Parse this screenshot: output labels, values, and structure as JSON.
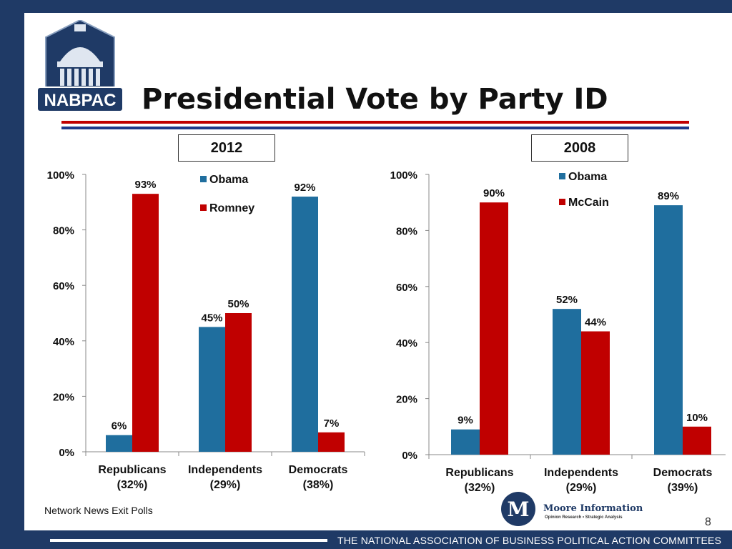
{
  "slide": {
    "title": "Presidential Vote by Party ID",
    "logo_text": "NABPAC",
    "source": "Network News Exit Polls",
    "page_number": "8",
    "footer": "THE NATIONAL ASSOCIATION OF BUSINESS POLITICAL ACTION COMMITTEES",
    "moore_logo": {
      "name": "Moore Information",
      "tagline": "Opinion Research • Strategic Analysis",
      "mark": "M"
    },
    "colors": {
      "background": "#1f3a66",
      "red": "#c00000",
      "blue": "#1f6e9e"
    }
  },
  "chart_data": [
    {
      "type": "bar",
      "year_label": "2012",
      "categories": [
        "Republicans (32%)",
        "Independents (29%)",
        "Democrats (38%)"
      ],
      "category_lines": [
        [
          "Republicans",
          "(32%)"
        ],
        [
          "Independents",
          "(29%)"
        ],
        [
          "Democrats",
          "(38%)"
        ]
      ],
      "series": [
        {
          "name": "Obama",
          "values": [
            6,
            45,
            92
          ],
          "labels": [
            "6%",
            "45%",
            "92%"
          ],
          "color": "#1f6e9e"
        },
        {
          "name": "Romney",
          "values": [
            93,
            50,
            7
          ],
          "labels": [
            "93%",
            "50%",
            "7%"
          ],
          "color": "#c00000"
        }
      ],
      "ylim": [
        0,
        100
      ],
      "yticks": [
        "0%",
        "20%",
        "40%",
        "60%",
        "80%",
        "100%"
      ],
      "legend": "top-center",
      "grid": false
    },
    {
      "type": "bar",
      "year_label": "2008",
      "categories": [
        "Republicans (32%)",
        "Independents (29%)",
        "Democrats (39%)"
      ],
      "category_lines": [
        [
          "Republicans",
          "(32%)"
        ],
        [
          "Independents",
          "(29%)"
        ],
        [
          "Democrats",
          "(39%)"
        ]
      ],
      "series": [
        {
          "name": "Obama",
          "values": [
            9,
            52,
            89
          ],
          "labels": [
            "9%",
            "52%",
            "89%"
          ],
          "color": "#1f6e9e"
        },
        {
          "name": "McCain",
          "values": [
            90,
            44,
            10
          ],
          "labels": [
            "90%",
            "44%",
            "10%"
          ],
          "color": "#c00000"
        }
      ],
      "ylim": [
        0,
        100
      ],
      "yticks": [
        "0%",
        "20%",
        "40%",
        "60%",
        "80%",
        "100%"
      ],
      "legend": "top-center",
      "grid": false
    }
  ]
}
